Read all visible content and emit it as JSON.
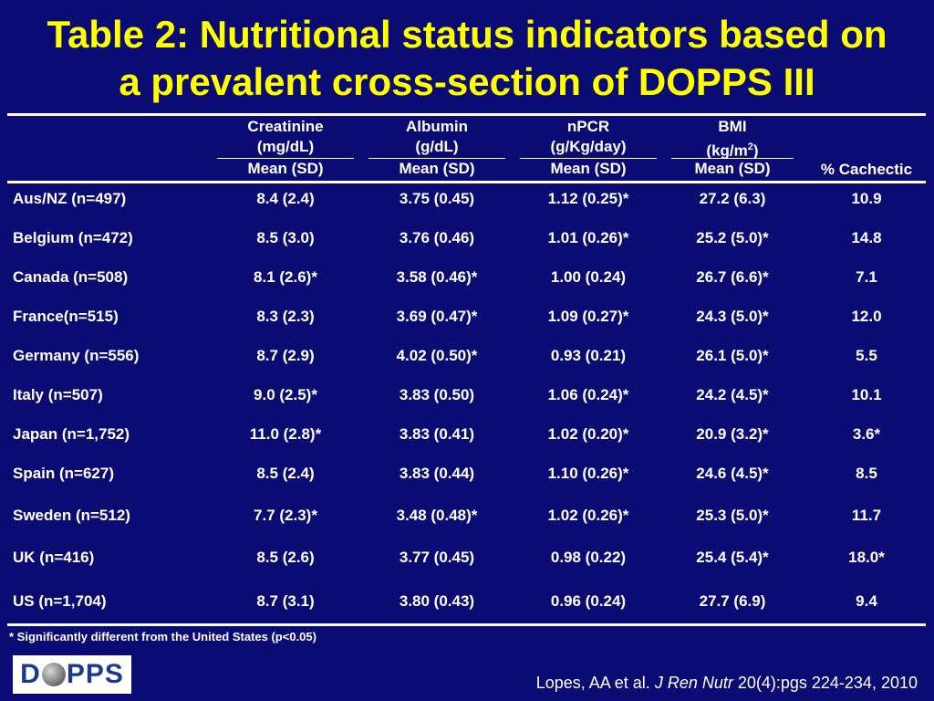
{
  "title": {
    "line1": "Table 2: Nutritional status indicators based on",
    "line2": "a prevalent cross-section of DOPPS III"
  },
  "columns": [
    {
      "name": "Creatinine",
      "unit": "(mg/dL)",
      "stat": "Mean (SD)"
    },
    {
      "name": "Albumin",
      "unit": "(g/dL)",
      "stat": "Mean (SD)"
    },
    {
      "name": "nPCR",
      "unit": "(g/Kg/day)",
      "stat": "Mean (SD)"
    },
    {
      "name": "BMI",
      "unit_prefix": "(kg/m",
      "unit_sup": "2",
      "unit_suffix": ")",
      "stat": "Mean (SD)"
    },
    {
      "name": "% Cachectic"
    }
  ],
  "rows": [
    {
      "country": "Aus/NZ (n=497)",
      "creatinine": "8.4 (2.4)",
      "albumin": "3.75 (0.45)",
      "npcr": "1.12 (0.25)*",
      "bmi": "27.2 (6.3)",
      "cachectic": "10.9"
    },
    {
      "country": "Belgium (n=472)",
      "creatinine": "8.5 (3.0)",
      "albumin": "3.76 (0.46)",
      "npcr": "1.01 (0.26)*",
      "bmi": "25.2 (5.0)*",
      "cachectic": "14.8"
    },
    {
      "country": "Canada (n=508)",
      "creatinine": "8.1 (2.6)*",
      "albumin": "3.58 (0.46)*",
      "npcr": "1.00 (0.24)",
      "bmi": "26.7 (6.6)*",
      "cachectic": "7.1"
    },
    {
      "country": "France(n=515)",
      "creatinine": "8.3 (2.3)",
      "albumin": "3.69 (0.47)*",
      "npcr": "1.09 (0.27)*",
      "bmi": "24.3 (5.0)*",
      "cachectic": "12.0"
    },
    {
      "country": "Germany (n=556)",
      "creatinine": "8.7 (2.9)",
      "albumin": "4.02 (0.50)*",
      "npcr": "0.93 (0.21)",
      "bmi": "26.1 (5.0)*",
      "cachectic": "5.5"
    },
    {
      "country": "Italy (n=507)",
      "creatinine": "9.0 (2.5)*",
      "albumin": "3.83 (0.50)",
      "npcr": "1.06 (0.24)*",
      "bmi": "24.2 (4.5)*",
      "cachectic": "10.1"
    },
    {
      "country": "Japan (n=1,752)",
      "creatinine": "11.0 (2.8)*",
      "albumin": "3.83 (0.41)",
      "npcr": "1.02 (0.20)*",
      "bmi": "20.9 (3.2)*",
      "cachectic": "3.6*"
    },
    {
      "country": "Spain (n=627)",
      "creatinine": "8.5 (2.4)",
      "albumin": "3.83 (0.44)",
      "npcr": "1.10 (0.26)*",
      "bmi": "24.6 (4.5)*",
      "cachectic": "8.5"
    },
    {
      "country": "Sweden (n=512)",
      "creatinine": "7.7 (2.3)*",
      "albumin": "3.48 (0.48)*",
      "npcr": "1.02 (0.26)*",
      "bmi": "25.3 (5.0)*",
      "cachectic": "11.7"
    },
    {
      "country": "UK (n=416)",
      "creatinine": "8.5 (2.6)",
      "albumin": "3.77 (0.45)",
      "npcr": "0.98 (0.22)",
      "bmi": "25.4 (5.4)*",
      "cachectic": "18.0*"
    },
    {
      "country": "US (n=1,704)",
      "creatinine": "8.7 (3.1)",
      "albumin": "3.80 (0.43)",
      "npcr": "0.96 (0.24)",
      "bmi": "27.7 (6.9)",
      "cachectic": "9.4"
    }
  ],
  "footnote": "* Significantly different from the United States (p<0.05)",
  "logo": {
    "left": "D",
    "right": "PPS"
  },
  "citation": {
    "authors": "Lopes, AA et al. ",
    "journal": "J Ren Nutr",
    "details": " 20(4):pgs 224-234, 2010"
  },
  "colors": {
    "background": "#0b0b74",
    "title": "#ffff00",
    "text": "#ffffff",
    "logo_text": "#1a3a8c"
  }
}
